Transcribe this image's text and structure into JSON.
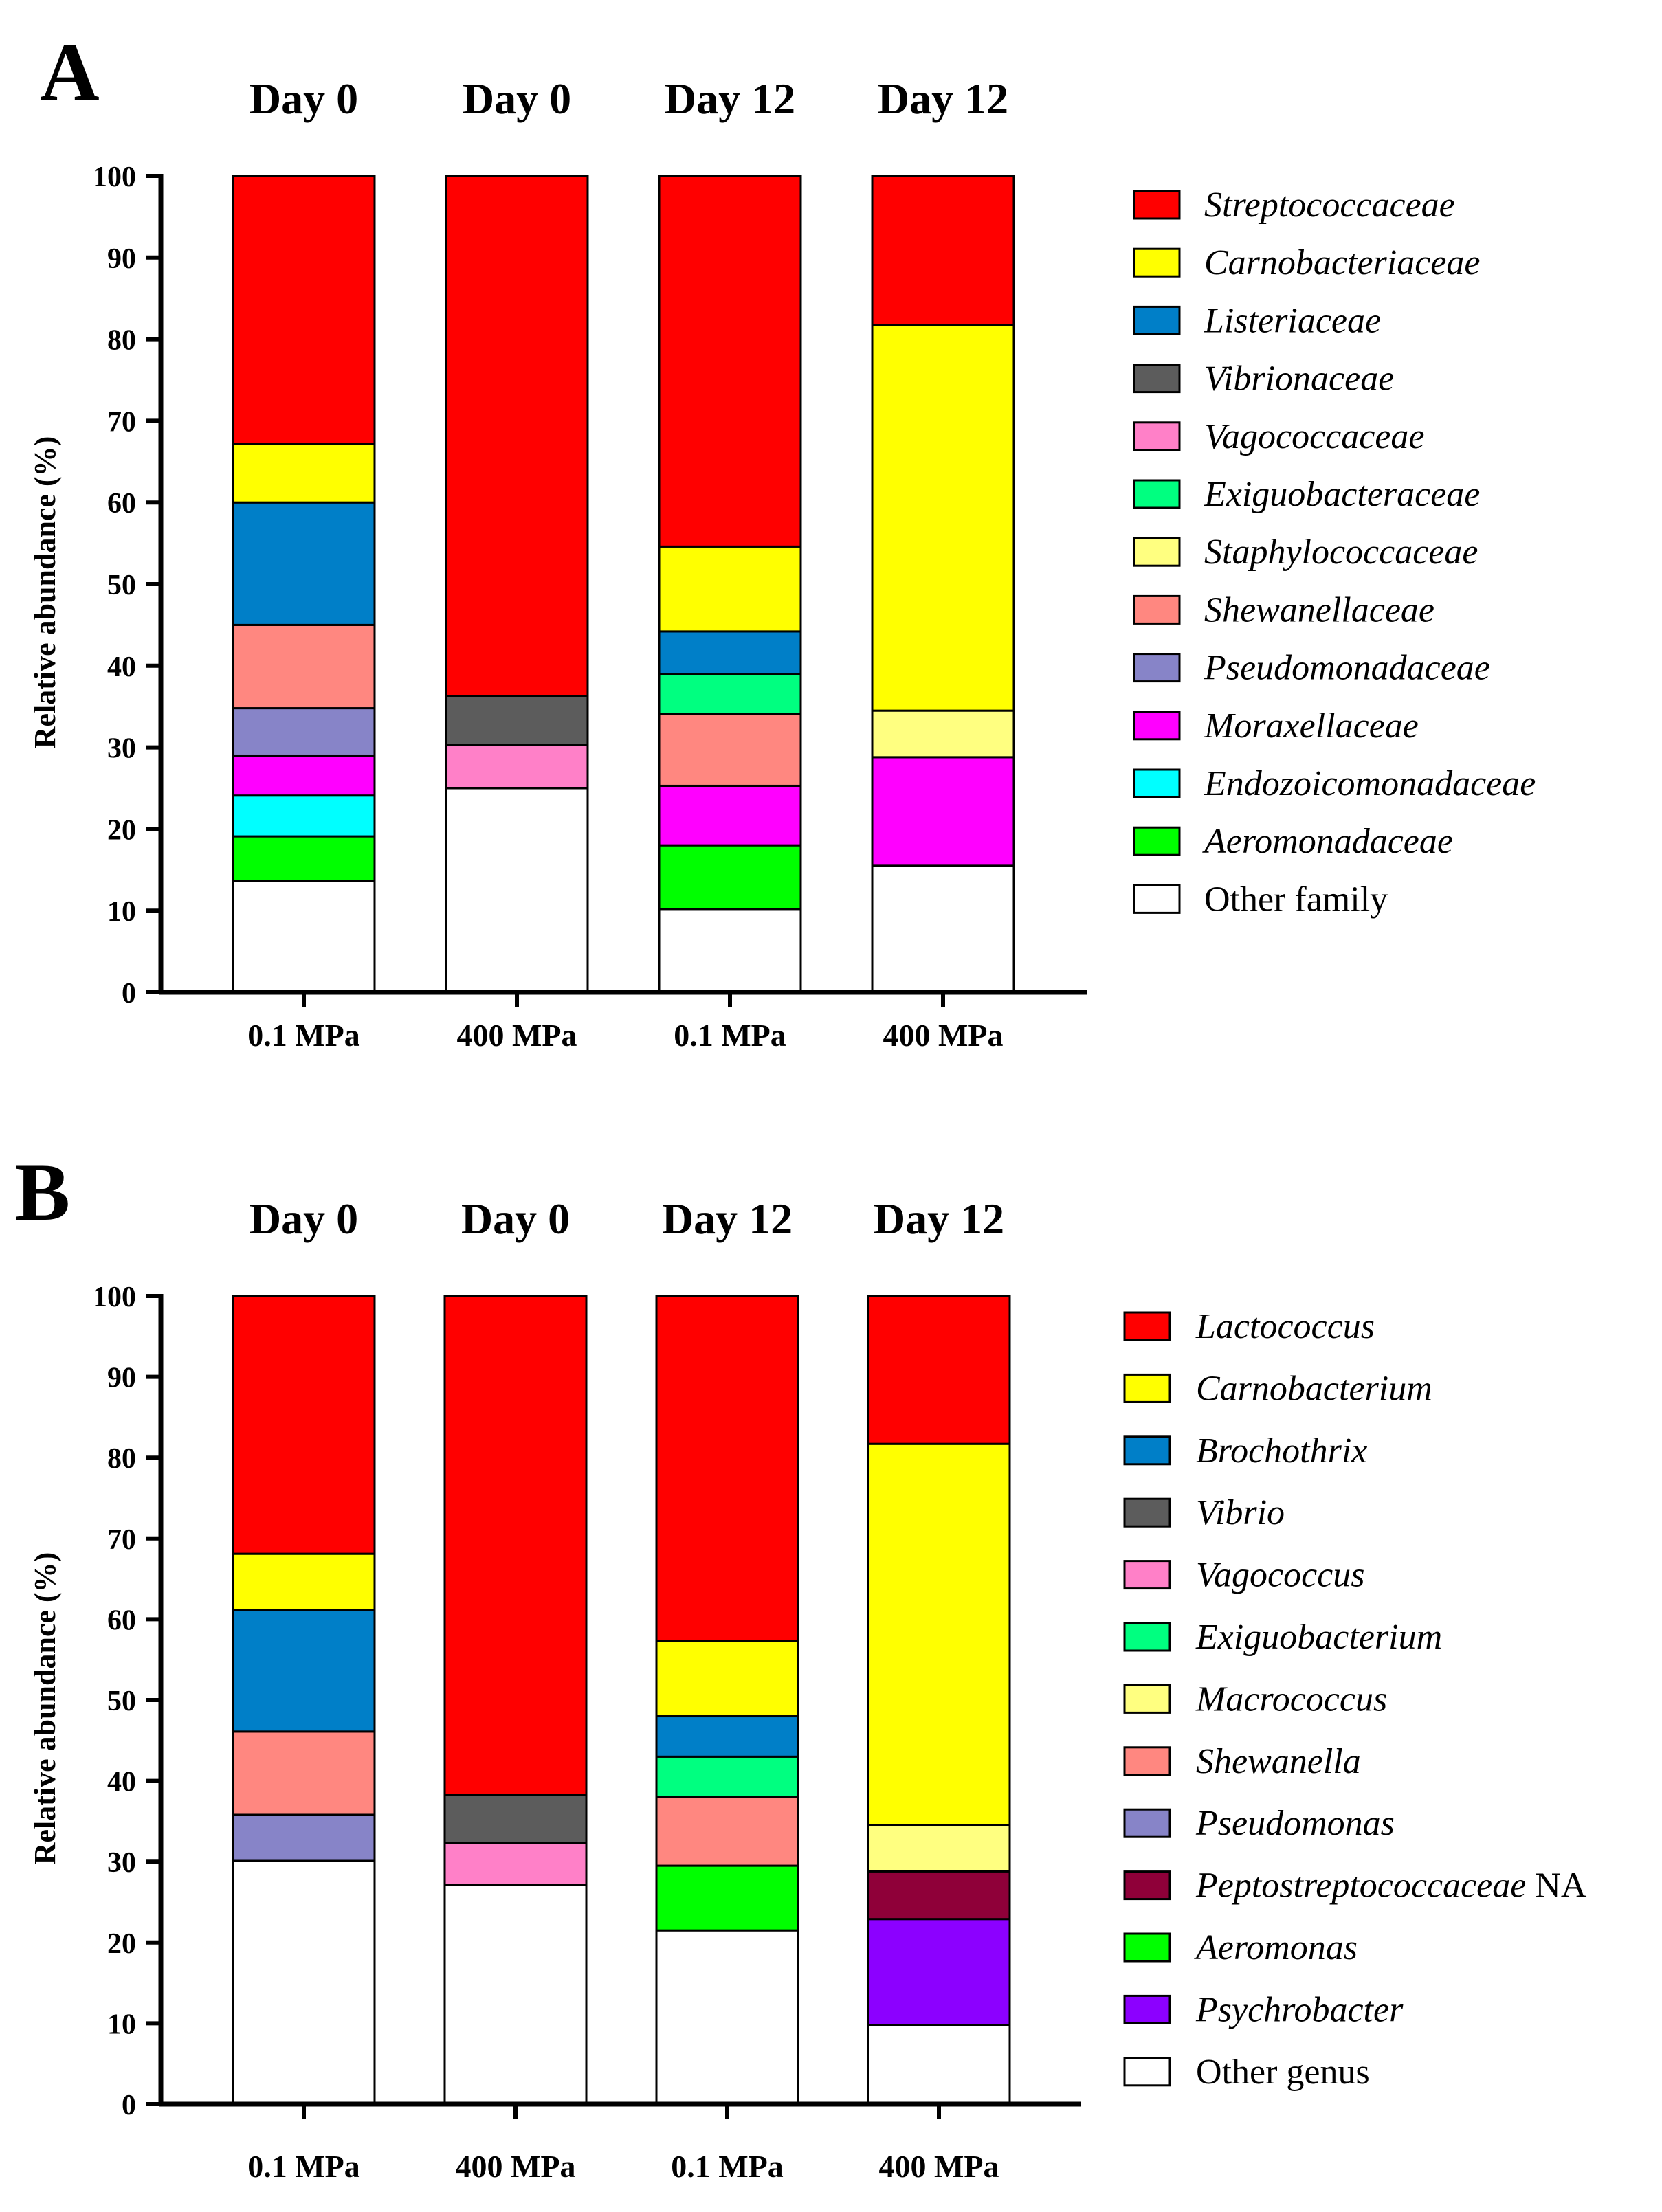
{
  "chart_data": [
    {
      "type": "bar",
      "stacked": true,
      "panel_label": "A",
      "categories": [
        "0.1 MPa",
        "400 MPa",
        "0.1 MPa",
        "400 MPa"
      ],
      "top_labels": [
        "Day 0",
        "Day 0",
        "Day 12",
        "Day 12"
      ],
      "ylabel": "Relative abundance (%)",
      "xlabel": "",
      "ylim": [
        0,
        100
      ],
      "yticks": [
        0,
        10,
        20,
        30,
        40,
        50,
        60,
        70,
        80,
        90,
        100
      ],
      "legend_position": "right",
      "grid": false,
      "series": [
        {
          "name": "Other family",
          "color": "#ffffff",
          "italic": false,
          "values": [
            13.6,
            25.0,
            10.2,
            15.5
          ]
        },
        {
          "name": "Aeromonadaceae",
          "color": "#00ff00",
          "italic": true,
          "values": [
            5.5,
            0,
            7.8,
            0
          ]
        },
        {
          "name": "Endozoicomonadaceae",
          "color": "#00ffff",
          "italic": true,
          "values": [
            5.0,
            0,
            0,
            0
          ]
        },
        {
          "name": "Moraxellaceae",
          "color": "#ff00ff",
          "italic": true,
          "values": [
            4.9,
            0,
            7.3,
            13.3
          ]
        },
        {
          "name": "Pseudomonadaceae",
          "color": "#8784c8",
          "italic": true,
          "values": [
            5.8,
            0,
            0,
            0
          ]
        },
        {
          "name": "Shewanellaceae",
          "color": "#ff8780",
          "italic": true,
          "values": [
            10.2,
            0,
            8.8,
            0
          ]
        },
        {
          "name": "Staphylococcaceae",
          "color": "#ffff80",
          "italic": true,
          "values": [
            0,
            0,
            0,
            5.7
          ]
        },
        {
          "name": "Exiguobacteraceae",
          "color": "#00ff80",
          "italic": true,
          "values": [
            0,
            0,
            4.9,
            0
          ]
        },
        {
          "name": "Vagococcaceae",
          "color": "#ff80c8",
          "italic": true,
          "values": [
            0,
            5.3,
            0,
            0
          ]
        },
        {
          "name": "Vibrionaceae",
          "color": "#5c5c5c",
          "italic": true,
          "values": [
            0,
            6.0,
            0,
            0
          ]
        },
        {
          "name": "Listeriaceae",
          "color": "#007fc8",
          "italic": true,
          "values": [
            15.0,
            0,
            5.2,
            0
          ]
        },
        {
          "name": "Carnobacteriaceae",
          "color": "#ffff00",
          "italic": true,
          "values": [
            7.2,
            0,
            10.4,
            47.2
          ]
        },
        {
          "name": "Streptococcaceae",
          "color": "#ff0000",
          "italic": true,
          "values": [
            32.8,
            63.7,
            45.4,
            18.3
          ]
        }
      ],
      "legend_order": [
        "Streptococcaceae",
        "Carnobacteriaceae",
        "Listeriaceae",
        "Vibrionaceae",
        "Vagococcaceae",
        "Exiguobacteraceae",
        "Staphylococcaceae",
        "Shewanellaceae",
        "Pseudomonadaceae",
        "Moraxellaceae",
        "Endozoicomonadaceae",
        "Aeromonadaceae",
        "Other family"
      ]
    },
    {
      "type": "bar",
      "stacked": true,
      "panel_label": "B",
      "categories": [
        "0.1 MPa",
        "400 MPa",
        "0.1 MPa",
        "400 MPa"
      ],
      "top_labels": [
        "Day 0",
        "Day 0",
        "Day 12",
        "Day 12"
      ],
      "ylabel": "Relative abundance (%)",
      "xlabel": "",
      "ylim": [
        0,
        100
      ],
      "yticks": [
        0,
        10,
        20,
        30,
        40,
        50,
        60,
        70,
        80,
        90,
        100
      ],
      "legend_position": "right",
      "grid": false,
      "series": [
        {
          "name": "Other genus",
          "color": "#ffffff",
          "italic": false,
          "values": [
            30.1,
            27.1,
            21.5,
            9.8
          ]
        },
        {
          "name": "Psychrobacter",
          "color": "#8c00ff",
          "italic": true,
          "values": [
            0,
            0,
            0,
            13.1
          ]
        },
        {
          "name": "Aeromonas",
          "color": "#00ff00",
          "italic": true,
          "values": [
            0,
            0,
            8.0,
            0
          ]
        },
        {
          "name": "Peptostreptococcaceae NA",
          "color": "#8f0039",
          "italic": true,
          "values": [
            0,
            0,
            0,
            5.9
          ]
        },
        {
          "name": "Pseudomonas",
          "color": "#8784c8",
          "italic": true,
          "values": [
            5.7,
            0,
            0,
            0
          ]
        },
        {
          "name": "Shewanella",
          "color": "#ff8780",
          "italic": true,
          "values": [
            10.3,
            0,
            8.5,
            0
          ]
        },
        {
          "name": "Macrococcus",
          "color": "#ffff80",
          "italic": true,
          "values": [
            0,
            0,
            0,
            5.7
          ]
        },
        {
          "name": "Exiguobacterium",
          "color": "#00ff80",
          "italic": true,
          "values": [
            0,
            0,
            5.0,
            0
          ]
        },
        {
          "name": "Vagococcus",
          "color": "#ff80c8",
          "italic": true,
          "values": [
            0,
            5.2,
            0,
            0
          ]
        },
        {
          "name": "Vibrio",
          "color": "#5c5c5c",
          "italic": true,
          "values": [
            0,
            6.0,
            0,
            0
          ]
        },
        {
          "name": "Brochothrix",
          "color": "#007fc8",
          "italic": true,
          "values": [
            15.0,
            0,
            5.0,
            0
          ]
        },
        {
          "name": "Carnobacterium",
          "color": "#ffff00",
          "italic": true,
          "values": [
            7.0,
            0,
            9.3,
            47.2
          ]
        },
        {
          "name": "Lactococcus",
          "color": "#ff0000",
          "italic": true,
          "values": [
            31.9,
            61.7,
            42.7,
            18.3
          ]
        }
      ],
      "legend_order": [
        "Lactococcus",
        "Carnobacterium",
        "Brochothrix",
        "Vibrio",
        "Vagococcus",
        "Exiguobacterium",
        "Macrococcus",
        "Shewanella",
        "Pseudomonas",
        "Peptostreptococcaceae NA",
        "Aeromonas",
        "Psychrobacter",
        "Other genus"
      ]
    }
  ]
}
